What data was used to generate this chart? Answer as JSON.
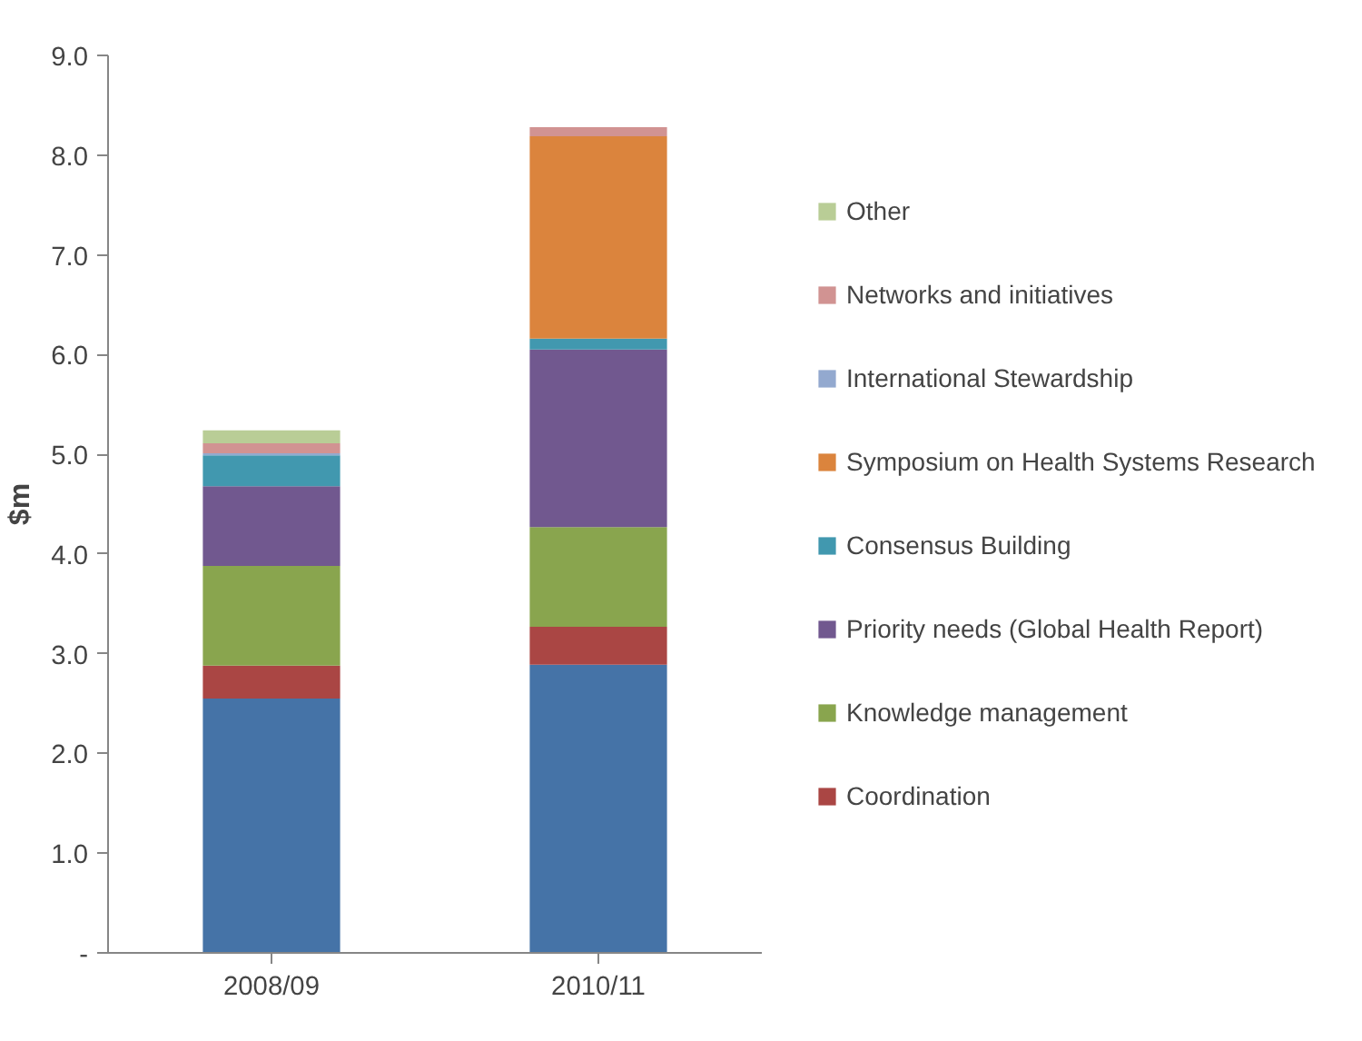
{
  "chart_data": {
    "type": "bar",
    "stacked": true,
    "ylabel": "$m",
    "categories": [
      "2008/09",
      "2010/11"
    ],
    "ylim": [
      0,
      9
    ],
    "yticks": [
      {
        "value": 0,
        "label": "-"
      },
      {
        "value": 1,
        "label": "1.0"
      },
      {
        "value": 2,
        "label": "2.0"
      },
      {
        "value": 3,
        "label": "3.0"
      },
      {
        "value": 4,
        "label": "4.0"
      },
      {
        "value": 5,
        "label": "5.0"
      },
      {
        "value": 6,
        "label": "6.0"
      },
      {
        "value": 7,
        "label": "7.0"
      },
      {
        "value": 8,
        "label": "8.0"
      },
      {
        "value": 9,
        "label": "9.0"
      }
    ],
    "grid": false,
    "legend": "right",
    "series": [
      {
        "color": "#4573a7",
        "values": [
          2.55,
          2.89
        ]
      },
      {
        "name": "Coordination",
        "color": "#aa4644",
        "values": [
          0.33,
          0.38
        ]
      },
      {
        "name": "Knowledge management",
        "color": "#89a54e",
        "values": [
          1.0,
          1.0
        ]
      },
      {
        "name": "Priority needs (Global Health Report)",
        "color": "#71588f",
        "values": [
          0.8,
          1.78
        ]
      },
      {
        "name": "Consensus Building",
        "color": "#4198af",
        "values": [
          0.31,
          0.11
        ]
      },
      {
        "name": "Symposium on Health Systems Research",
        "color": "#db843d",
        "values": [
          0,
          2.03
        ]
      },
      {
        "name": "International Stewardship",
        "color": "#93a9cf",
        "values": [
          0.02,
          0
        ]
      },
      {
        "name": "Networks and initiatives",
        "color": "#d19392",
        "values": [
          0.1,
          0.09
        ]
      },
      {
        "name": "Other",
        "color": "#b9cd96",
        "values": [
          0.13,
          0
        ]
      }
    ]
  }
}
